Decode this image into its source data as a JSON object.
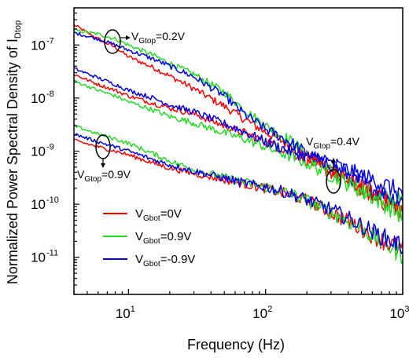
{
  "chart_data": {
    "type": "line",
    "xlabel": "Frequency (Hz)",
    "ylabel": {
      "text": "Normalized Power Spectral Density of I",
      "sub": "Dtop"
    },
    "x_scale": "log",
    "y_scale": "log",
    "xlim": [
      4,
      1000
    ],
    "ylim": [
      2e-12,
      5e-07
    ],
    "x_ticks": [
      {
        "value": 10,
        "base": "10",
        "exp": "1"
      },
      {
        "value": 100,
        "base": "10",
        "exp": "2"
      },
      {
        "value": 1000,
        "base": "10",
        "exp": "3"
      }
    ],
    "y_ticks": [
      {
        "value": 1e-11,
        "base": "10",
        "exp": "-11"
      },
      {
        "value": 1e-10,
        "base": "10",
        "exp": "-10"
      },
      {
        "value": 1e-09,
        "base": "10",
        "exp": "-9"
      },
      {
        "value": 1e-08,
        "base": "10",
        "exp": "-8"
      },
      {
        "value": 1e-07,
        "base": "10",
        "exp": "-7"
      }
    ],
    "grid": false,
    "legend": {
      "placement": "bottom-left",
      "entries": [
        {
          "label_main": "V",
          "label_sub": "Gbot",
          "label_rest": "=0V",
          "color": "#ff0000"
        },
        {
          "label_main": "V",
          "label_sub": "Gbot",
          "label_rest": "=0.9V",
          "color": "#22dd22"
        },
        {
          "label_main": "V",
          "label_sub": "Gbot",
          "label_rest": "=-0.9V",
          "color": "#0000ee"
        }
      ]
    },
    "annotations": [
      {
        "main": "V",
        "sub": "Gtop",
        "rest": "=0.2V"
      },
      {
        "main": "V",
        "sub": "Gtop",
        "rest": "=0.4V"
      },
      {
        "main": "V",
        "sub": "Gtop",
        "rest": "=0.9V"
      }
    ],
    "series": [
      {
        "group": "0.2V",
        "color": "#ff0000",
        "x": [
          4,
          6,
          8,
          10,
          15,
          20,
          30,
          50,
          70,
          100,
          150,
          200,
          300,
          500,
          700,
          1000
        ],
        "y": [
          2.4e-07,
          1.3e-07,
          9e-08,
          6e-08,
          3.8e-08,
          2.6e-08,
          1.5e-08,
          7e-09,
          4e-09,
          2.3e-09,
          1.3e-09,
          8e-10,
          4.5e-10,
          2.2e-10,
          1.3e-10,
          8e-11
        ]
      },
      {
        "group": "0.2V",
        "color": "#22dd22",
        "x": [
          4,
          6,
          8,
          10,
          15,
          20,
          30,
          50,
          70,
          100,
          150,
          200,
          300,
          500,
          700,
          1000
        ],
        "y": [
          1.9e-07,
          1.6e-07,
          1.3e-07,
          1e-07,
          6.5e-08,
          4.5e-08,
          2.8e-08,
          1.3e-08,
          6e-09,
          3e-09,
          1.6e-09,
          9e-10,
          4.5e-10,
          1.9e-10,
          1.3e-10,
          1.1e-10
        ]
      },
      {
        "group": "0.2V",
        "color": "#0000ee",
        "x": [
          4,
          6,
          8,
          10,
          15,
          20,
          30,
          50,
          70,
          100,
          150,
          200,
          300,
          500,
          700,
          1000
        ],
        "y": [
          1.7e-07,
          1.3e-07,
          1e-07,
          8e-08,
          5.5e-08,
          4e-08,
          2.5e-08,
          1.1e-08,
          5e-09,
          2.6e-09,
          1.5e-09,
          9e-10,
          5.5e-10,
          2.5e-10,
          1.6e-10,
          1.1e-10
        ]
      },
      {
        "group": "0.4V",
        "color": "#ff0000",
        "x": [
          4,
          6,
          8,
          10,
          15,
          20,
          30,
          50,
          70,
          100,
          150,
          200,
          300,
          500,
          700,
          1000
        ],
        "y": [
          2.8e-08,
          1.8e-08,
          1.4e-08,
          1.1e-08,
          8e-09,
          6.5e-09,
          5e-09,
          3e-09,
          2.2e-09,
          1.5e-09,
          1e-09,
          7e-10,
          4e-10,
          2e-10,
          1.2e-10,
          7e-11
        ]
      },
      {
        "group": "0.4V",
        "color": "#22dd22",
        "x": [
          4,
          6,
          8,
          10,
          15,
          20,
          30,
          50,
          70,
          100,
          150,
          200,
          300,
          500,
          700,
          1000
        ],
        "y": [
          2.1e-08,
          1.4e-08,
          1.1e-08,
          8.5e-09,
          6e-09,
          4.5e-09,
          3.4e-09,
          2.2e-09,
          1.7e-09,
          1.2e-09,
          8e-10,
          6e-10,
          3.5e-10,
          1.8e-10,
          1.1e-10,
          6e-11
        ]
      },
      {
        "group": "0.4V",
        "color": "#0000ee",
        "x": [
          4,
          6,
          8,
          10,
          15,
          20,
          30,
          50,
          70,
          100,
          150,
          200,
          300,
          500,
          700,
          1000
        ],
        "y": [
          3.6e-08,
          2.4e-08,
          1.8e-08,
          1.4e-08,
          1e-08,
          7.5e-09,
          5.5e-09,
          3.3e-09,
          2.3e-09,
          1.5e-09,
          1e-09,
          8e-10,
          6e-10,
          3.5e-10,
          2.5e-10,
          1.6e-10
        ]
      },
      {
        "group": "0.9V",
        "color": "#ff0000",
        "x": [
          4,
          6,
          8,
          10,
          15,
          20,
          30,
          50,
          70,
          100,
          150,
          200,
          300,
          500,
          700,
          1000
        ],
        "y": [
          1.6e-09,
          1.2e-09,
          1e-09,
          8.5e-10,
          6e-10,
          4.8e-10,
          3.8e-10,
          2.9e-10,
          2.4e-10,
          2e-10,
          1.5e-10,
          1.2e-10,
          7e-11,
          3.5e-11,
          2.1e-11,
          1.4e-11
        ]
      },
      {
        "group": "0.9V",
        "color": "#22dd22",
        "x": [
          4,
          6,
          8,
          10,
          15,
          20,
          30,
          50,
          70,
          100,
          150,
          200,
          300,
          500,
          700,
          1000
        ],
        "y": [
          3e-09,
          2.1e-09,
          1.7e-09,
          1.4e-09,
          9e-10,
          6.5e-10,
          4.5e-10,
          3.2e-10,
          2.6e-10,
          2.1e-10,
          1.6e-10,
          1.2e-10,
          7e-11,
          3.5e-11,
          2e-11,
          1.1e-11
        ]
      },
      {
        "group": "0.9V",
        "color": "#0000ee",
        "x": [
          4,
          6,
          8,
          10,
          15,
          20,
          30,
          50,
          70,
          100,
          150,
          200,
          300,
          500,
          700,
          1000
        ],
        "y": [
          2.1e-09,
          1.5e-09,
          1.2e-09,
          1e-09,
          7e-10,
          5.5e-10,
          4.2e-10,
          3.1e-10,
          2.5e-10,
          2.1e-10,
          1.6e-10,
          1.2e-10,
          8e-11,
          4e-11,
          2.5e-11,
          1.6e-11
        ]
      }
    ]
  }
}
